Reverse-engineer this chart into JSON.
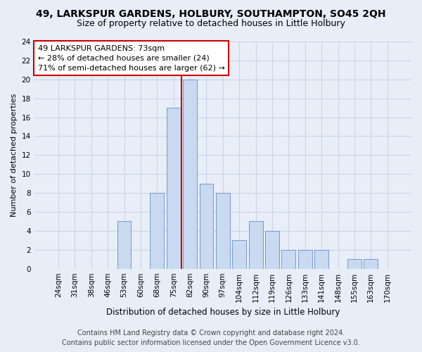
{
  "title": "49, LARKSPUR GARDENS, HOLBURY, SOUTHAMPTON, SO45 2QH",
  "subtitle": "Size of property relative to detached houses in Little Holbury",
  "xlabel": "Distribution of detached houses by size in Little Holbury",
  "ylabel": "Number of detached properties",
  "footer_line1": "Contains HM Land Registry data © Crown copyright and database right 2024.",
  "footer_line2": "Contains public sector information licensed under the Open Government Licence v3.0.",
  "categories": [
    "24sqm",
    "31sqm",
    "38sqm",
    "46sqm",
    "53sqm",
    "60sqm",
    "68sqm",
    "75sqm",
    "82sqm",
    "90sqm",
    "97sqm",
    "104sqm",
    "112sqm",
    "119sqm",
    "126sqm",
    "133sqm",
    "141sqm",
    "148sqm",
    "155sqm",
    "163sqm",
    "170sqm"
  ],
  "values": [
    0,
    0,
    0,
    0,
    5,
    0,
    8,
    17,
    20,
    9,
    8,
    3,
    5,
    4,
    2,
    2,
    2,
    0,
    1,
    1,
    0
  ],
  "bar_color": "#c8d9f0",
  "bar_edge_color": "#7799cc",
  "grid_color": "#c8d4e8",
  "background_color": "#e8eef8",
  "annotation_text": "49 LARKSPUR GARDENS: 73sqm\n← 28% of detached houses are smaller (24)\n71% of semi-detached houses are larger (62) →",
  "annotation_box_color": "#ffffff",
  "annotation_box_edge": "#cc0000",
  "vline_x_index": 7.5,
  "vline_color": "#cc0000",
  "ylim": [
    0,
    24
  ],
  "yticks": [
    0,
    2,
    4,
    6,
    8,
    10,
    12,
    14,
    16,
    18,
    20,
    22,
    24
  ],
  "title_fontsize": 10,
  "subtitle_fontsize": 9,
  "xlabel_fontsize": 8.5,
  "ylabel_fontsize": 8,
  "tick_fontsize": 7.5,
  "annotation_fontsize": 8,
  "footer_fontsize": 7
}
